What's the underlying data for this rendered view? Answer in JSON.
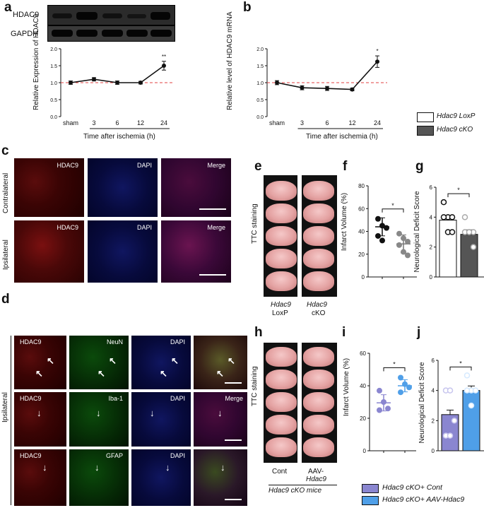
{
  "panels": {
    "a": "a",
    "b": "b",
    "c": "c",
    "d": "d",
    "e": "e",
    "f": "f",
    "g": "g",
    "h": "h",
    "i": "i",
    "j": "j"
  },
  "blot": {
    "row1": "HDAC9",
    "row2": "GAPDH"
  },
  "panel_a": {
    "ylabel": "Relative Expression of HDAC9",
    "xlabel": "Time after ischemia (h)",
    "yticks": [
      "0.0",
      "0.5",
      "1.0",
      "1.5",
      "2.0"
    ],
    "xticks": [
      "sham",
      "3",
      "6",
      "12",
      "24"
    ],
    "sig": "**"
  },
  "panel_b": {
    "ylabel": "Relative level of HDAC9 mRNA",
    "xlabel": "Time after ischemia (h)",
    "yticks": [
      "0.0",
      "0.5",
      "1.0",
      "1.5",
      "2.0"
    ],
    "xticks": [
      "sham",
      "3",
      "6",
      "12",
      "24"
    ],
    "sig": "*"
  },
  "legend_top": {
    "item1": "Hdac9 LoxP",
    "item2": "Hdac9 cKO"
  },
  "panel_c": {
    "row1": "Contralateral",
    "row2": "Ipsilateral",
    "labels": [
      "HDAC9",
      "DAPI",
      "Merge"
    ]
  },
  "panel_d": {
    "side": "Ipsilateral",
    "row1": [
      "HDAC9",
      "NeuN",
      "DAPI"
    ],
    "row2": [
      "HDAC9",
      "Iba-1",
      "DAPI",
      "Merge"
    ],
    "row3": [
      "HDAC9",
      "GFAP",
      "DAPI"
    ]
  },
  "panel_e": {
    "side": "TTC staining",
    "col1a": "Hdac9",
    "col1b": "LoxP",
    "col2a": "Hdac9",
    "col2b": "cKO"
  },
  "panel_f": {
    "ylabel": "Infarct Volume (%)",
    "yticks": [
      "0",
      "20",
      "40",
      "60",
      "80"
    ],
    "sig": "*"
  },
  "panel_g": {
    "ylabel": "Neurological Deficit Score",
    "yticks": [
      "0",
      "2",
      "4",
      "6"
    ],
    "sig": "*"
  },
  "panel_h": {
    "side": "TTC staining",
    "col1": "Cont",
    "col2a": "AAV-",
    "col2b": "Hdac9",
    "footer": "Hdac9 cKO mice"
  },
  "panel_i": {
    "ylabel": "Infarct Volume (%)",
    "yticks": [
      "0",
      "20",
      "40",
      "60"
    ],
    "sig": "*"
  },
  "panel_j": {
    "ylabel": "Neurological Deficit Score",
    "yticks": [
      "0",
      "2",
      "4",
      "6"
    ],
    "sig": "*"
  },
  "legend_bottom": {
    "item1": "Hdac9 cKO+ Cont",
    "item2": "Hdac9 cKO+ AAV-Hdac9"
  },
  "colors": {
    "loxp": "#ffffff",
    "cko": "#555555",
    "cont": "#8a86d0",
    "aav": "#4f9fe8",
    "dashed": "#e24040"
  },
  "chart_data": [
    {
      "type": "line",
      "panel": "a",
      "categories": [
        "sham",
        "3",
        "6",
        "12",
        "24"
      ],
      "values": [
        1.0,
        1.1,
        1.0,
        1.0,
        1.5
      ],
      "ylim": [
        0,
        2.0
      ],
      "xlabel": "Time after ischemia (h)",
      "ylabel": "Relative Expression of HDAC9"
    },
    {
      "type": "line",
      "panel": "b",
      "categories": [
        "sham",
        "3",
        "6",
        "12",
        "24"
      ],
      "values": [
        1.0,
        0.85,
        0.83,
        0.8,
        1.62
      ],
      "ylim": [
        0,
        2.0
      ],
      "xlabel": "Time after ischemia (h)",
      "ylabel": "Relative level of HDAC9 mRNA"
    },
    {
      "type": "scatter",
      "panel": "f",
      "categories": [
        "Hdac9 LoxP",
        "Hdac9 cKO"
      ],
      "series": [
        {
          "name": "Hdac9 LoxP",
          "mean": 44,
          "points": [
            51,
            45,
            43,
            36,
            32
          ]
        },
        {
          "name": "Hdac9 cKO",
          "mean": 29,
          "points": [
            38,
            34,
            31,
            28,
            22,
            19
          ]
        }
      ],
      "ylim": [
        0,
        80
      ],
      "ylabel": "Infarct Volume (%)"
    },
    {
      "type": "bar",
      "panel": "g",
      "categories": [
        "Hdac9 LoxP",
        "Hdac9 cKO"
      ],
      "values": [
        3.8,
        2.85
      ],
      "points": [
        [
          5,
          4,
          4,
          4,
          3,
          3
        ],
        [
          4,
          3,
          3,
          3,
          3,
          2
        ]
      ],
      "ylim": [
        0,
        6
      ],
      "ylabel": "Neurological Deficit Score"
    },
    {
      "type": "scatter",
      "panel": "i",
      "categories": [
        "Hdac9 cKO+ Cont",
        "Hdac9 cKO+ AAV-Hdac9"
      ],
      "series": [
        {
          "name": "Hdac9 cKO+ Cont",
          "mean": 29.5,
          "points": [
            37,
            30,
            26,
            25
          ]
        },
        {
          "name": "Hdac9 cKO+ AAV-Hdac9",
          "mean": 40,
          "points": [
            45,
            41,
            39,
            36
          ]
        }
      ],
      "ylim": [
        0,
        60
      ],
      "ylabel": "Infarct Volume (%)"
    },
    {
      "type": "bar",
      "panel": "j",
      "categories": [
        "Hdac9 cKO+ Cont",
        "Hdac9 cKO+ AAV-Hdac9"
      ],
      "values": [
        2.4,
        4.0
      ],
      "points": [
        [
          4,
          4,
          2,
          1,
          1
        ],
        [
          5,
          4,
          4,
          4,
          3
        ]
      ],
      "ylim": [
        0,
        6
      ],
      "ylabel": "Neurological Deficit Score"
    }
  ]
}
